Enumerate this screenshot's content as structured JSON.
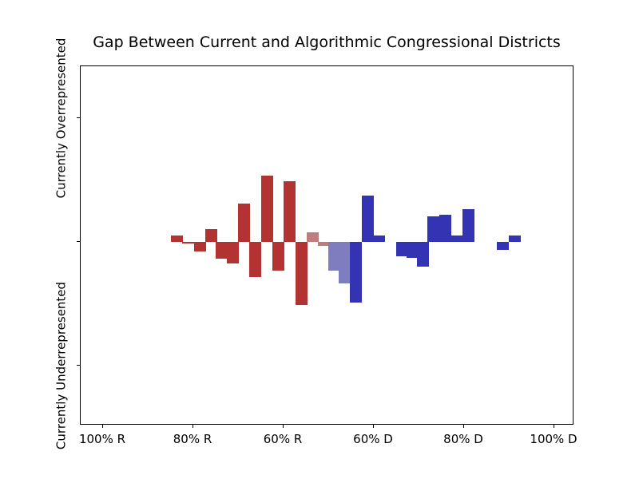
{
  "figure": {
    "title": "Gap Between Current and Algorithmic Congressional Districts"
  },
  "y_axis": {
    "top_label": "Currently Overrepresented",
    "bottom_label": "Currently Underrepresented"
  },
  "chart_data": {
    "type": "bar",
    "title": "Gap Between Current and Algorithmic Congressional Districts",
    "x_tick_labels": [
      "100% R",
      "80% R",
      "60% R",
      "60% D",
      "80% D",
      "100% D"
    ],
    "x_tick_lean_pct_d": [
      0,
      20,
      40,
      60,
      80,
      100
    ],
    "y_tick_labels": [
      "Currently Overrepresented",
      "",
      "Currently Underrepresented"
    ],
    "y_axis_numeric_labels": false,
    "grid": false,
    "legend": false,
    "axis_note": "y axis is unlabeled relative gap; positive = overrepresented, negative = underrepresented; x = district partisan lean from 100% R to 100% D",
    "colors": {
      "republican": "#b33333",
      "republican_faded": "#bf7d7d",
      "democratic_faded": "#7d7dbf",
      "democratic": "#3333b3",
      "axis": "#000000",
      "background": "#ffffff"
    },
    "bars": [
      {
        "lean_pct_d": 16.2,
        "gap": 0.052,
        "color": "republican"
      },
      {
        "lean_pct_d": 18.8,
        "gap": -0.013,
        "color": "republican"
      },
      {
        "lean_pct_d": 21.4,
        "gap": -0.077,
        "color": "republican"
      },
      {
        "lean_pct_d": 23.8,
        "gap": 0.103,
        "color": "republican"
      },
      {
        "lean_pct_d": 26.2,
        "gap": -0.135,
        "color": "republican"
      },
      {
        "lean_pct_d": 28.6,
        "gap": -0.174,
        "color": "republican"
      },
      {
        "lean_pct_d": 31.1,
        "gap": 0.31,
        "color": "republican"
      },
      {
        "lean_pct_d": 33.7,
        "gap": -0.284,
        "color": "republican"
      },
      {
        "lean_pct_d": 36.2,
        "gap": 0.535,
        "color": "republican"
      },
      {
        "lean_pct_d": 38.7,
        "gap": -0.232,
        "color": "republican"
      },
      {
        "lean_pct_d": 41.2,
        "gap": 0.49,
        "color": "republican"
      },
      {
        "lean_pct_d": 43.8,
        "gap": -0.51,
        "color": "republican"
      },
      {
        "lean_pct_d": 46.3,
        "gap": 0.077,
        "color": "republican_faded"
      },
      {
        "lean_pct_d": 48.8,
        "gap": -0.032,
        "color": "republican_faded"
      },
      {
        "lean_pct_d": 51.2,
        "gap": -0.232,
        "color": "democratic_faded"
      },
      {
        "lean_pct_d": 53.5,
        "gap": -0.335,
        "color": "democratic_faded"
      },
      {
        "lean_pct_d": 56.0,
        "gap": -0.49,
        "color": "democratic"
      },
      {
        "lean_pct_d": 58.6,
        "gap": 0.374,
        "color": "democratic"
      },
      {
        "lean_pct_d": 61.1,
        "gap": 0.052,
        "color": "democratic"
      },
      {
        "lean_pct_d": 66.2,
        "gap": -0.116,
        "color": "democratic"
      },
      {
        "lean_pct_d": 68.4,
        "gap": -0.129,
        "color": "democratic"
      },
      {
        "lean_pct_d": 70.7,
        "gap": -0.2,
        "color": "democratic"
      },
      {
        "lean_pct_d": 73.1,
        "gap": 0.206,
        "color": "democratic"
      },
      {
        "lean_pct_d": 75.7,
        "gap": 0.219,
        "color": "democratic"
      },
      {
        "lean_pct_d": 78.4,
        "gap": 0.052,
        "color": "democratic"
      },
      {
        "lean_pct_d": 80.9,
        "gap": 0.265,
        "color": "democratic"
      },
      {
        "lean_pct_d": 88.4,
        "gap": -0.065,
        "color": "democratic"
      },
      {
        "lean_pct_d": 91.2,
        "gap": 0.052,
        "color": "democratic"
      }
    ]
  }
}
